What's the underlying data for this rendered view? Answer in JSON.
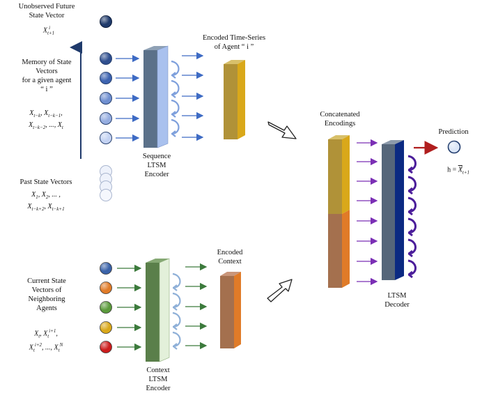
{
  "top_left": {
    "future_label": [
      "Unobserved Future",
      "State Vector"
    ],
    "future_symbol": "X_{t+1}^{i}",
    "memory_label": [
      "Memory of State",
      "Vectors",
      "for a given agent",
      "“ i ”"
    ],
    "memory_math": [
      "X_{t-k}^{i}, X_{t-k-1}^{i},",
      "X_{t-k-2}^{i}, ..., X_{t}^{i}"
    ],
    "past_label": "Past State Vectors",
    "past_math": [
      "X_1^{i}, X_2^{i}, ... ,",
      "X_{t-k+2}^{i}, X_{t-k+1}^{i}"
    ]
  },
  "sequence_encoder": [
    "Sequence",
    "LTSM",
    "Encoder"
  ],
  "encoded_timeseries": [
    "Encoded Time-Series",
    "of Agent “ i ”"
  ],
  "bottom_left": {
    "current_label": [
      "Current State",
      "Vectors of",
      "Neighboring",
      "Agents"
    ],
    "current_math": [
      "X_t^{i}, X_t^{i+1},",
      "X_t^{i+2}, ..., X_t^{N}"
    ]
  },
  "context_encoder": [
    "Context",
    "LTSM",
    "Encoder"
  ],
  "encoded_context": [
    "Encoded",
    "Context"
  ],
  "concatenated": [
    "Concatenated",
    "Encodings"
  ],
  "decoder": [
    "LTSM",
    "Decoder"
  ],
  "prediction": {
    "label": "Prediction",
    "formula": "h = X̂_{t+1}^{i}"
  },
  "colors": {
    "memory_dots": [
      "#2f4f8f",
      "#3d63b0",
      "#6f8fd0",
      "#95ade0",
      "#c3d2f2"
    ],
    "future_dot": "#1f3a6b",
    "neighbor_dots": [
      "#3a62a8",
      "#e07b28",
      "#5b9a3c",
      "#d9a81a",
      "#cc1d1d"
    ],
    "seq_encoder_front": "#5b7189",
    "seq_encoder_side": "#a9c1ee",
    "context_encoder_front": "#5a7f4a",
    "encoded_timeseries": "#b09238",
    "encoded_context": "#a4704e",
    "decoder_front": "#55667a",
    "decoder_side": "#0b2a82",
    "arrow_blue": "#3e6bc4",
    "arrow_green": "#3c7a3c",
    "arrow_purple": "#7b2fb5",
    "arrow_red": "#b01e1e"
  }
}
